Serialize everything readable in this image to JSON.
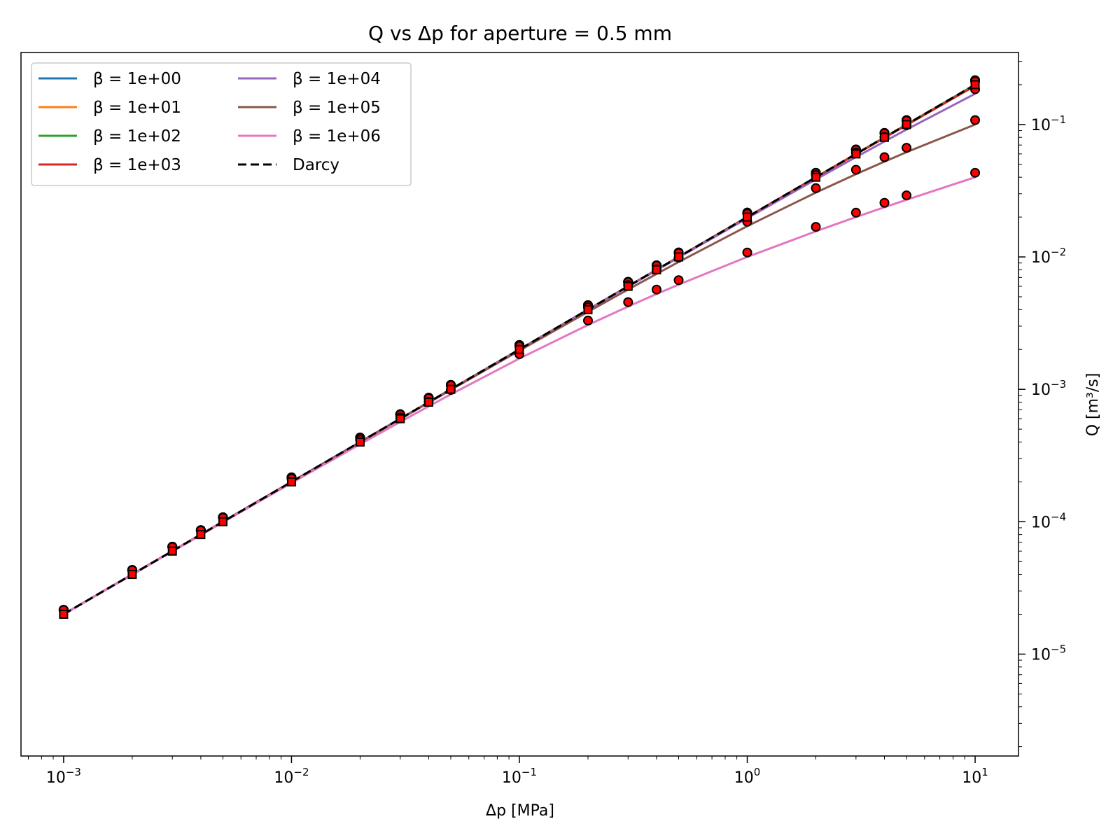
{
  "chart_data": {
    "type": "line",
    "title": "Q vs Δp for aperture = 0.5 mm",
    "xlabel": "Δp [MPa]",
    "ylabel": "Q [m³/s]",
    "x_scale": "log",
    "y_scale": "log",
    "y_axis_side": "right",
    "xlim": [
      0.00065,
      15.5
    ],
    "ylim": [
      1.7e-06,
      0.35
    ],
    "x_ticks": [
      {
        "value": 0.001,
        "mantissa": "10",
        "exponent": "−3"
      },
      {
        "value": 0.01,
        "mantissa": "10",
        "exponent": "−2"
      },
      {
        "value": 0.1,
        "mantissa": "10",
        "exponent": "−1"
      },
      {
        "value": 1,
        "mantissa": "10",
        "exponent": "0"
      },
      {
        "value": 10,
        "mantissa": "10",
        "exponent": "1"
      }
    ],
    "y_ticks": [
      {
        "value": 1e-05,
        "mantissa": "10",
        "exponent": "−5"
      },
      {
        "value": 0.0001,
        "mantissa": "10",
        "exponent": "−4"
      },
      {
        "value": 0.001,
        "mantissa": "10",
        "exponent": "−3"
      },
      {
        "value": 0.01,
        "mantissa": "10",
        "exponent": "−2"
      },
      {
        "value": 0.1,
        "mantissa": "10",
        "exponent": "−1"
      }
    ],
    "grid": false,
    "legend": {
      "placement": "top-left",
      "columns": 2
    },
    "x": [
      0.001,
      0.002,
      0.003,
      0.004,
      0.005,
      0.01,
      0.02,
      0.03,
      0.04,
      0.05,
      0.1,
      0.2,
      0.3,
      0.4,
      0.5,
      1,
      2,
      3,
      4,
      5,
      10
    ],
    "model": {
      "darcy_coefficient": 0.02,
      "forchheimer_b": 0.0001
    },
    "series": [
      {
        "name": "β = 1e+00",
        "beta": 1,
        "color": "#1f77b4",
        "style": "solid"
      },
      {
        "name": "β = 1e+01",
        "beta": 10,
        "color": "#ff7f0e",
        "style": "solid"
      },
      {
        "name": "β = 1e+02",
        "beta": 100,
        "color": "#2ca02c",
        "style": "solid"
      },
      {
        "name": "β = 1e+03",
        "beta": 1000,
        "color": "#d62728",
        "style": "solid"
      },
      {
        "name": "β = 1e+04",
        "beta": 10000,
        "color": "#9467bd",
        "style": "solid"
      },
      {
        "name": "β = 1e+05",
        "beta": 100000,
        "color": "#8c564b",
        "style": "solid"
      },
      {
        "name": "β = 1e+06",
        "beta": 1000000,
        "color": "#e377c2",
        "style": "solid"
      },
      {
        "name": "Darcy",
        "beta": 0,
        "color": "#000000",
        "style": "dashed"
      }
    ],
    "markers": {
      "fill": "#ff0000",
      "edge": "#000000",
      "darcy_shape": "square",
      "other_shape": "circle"
    }
  }
}
